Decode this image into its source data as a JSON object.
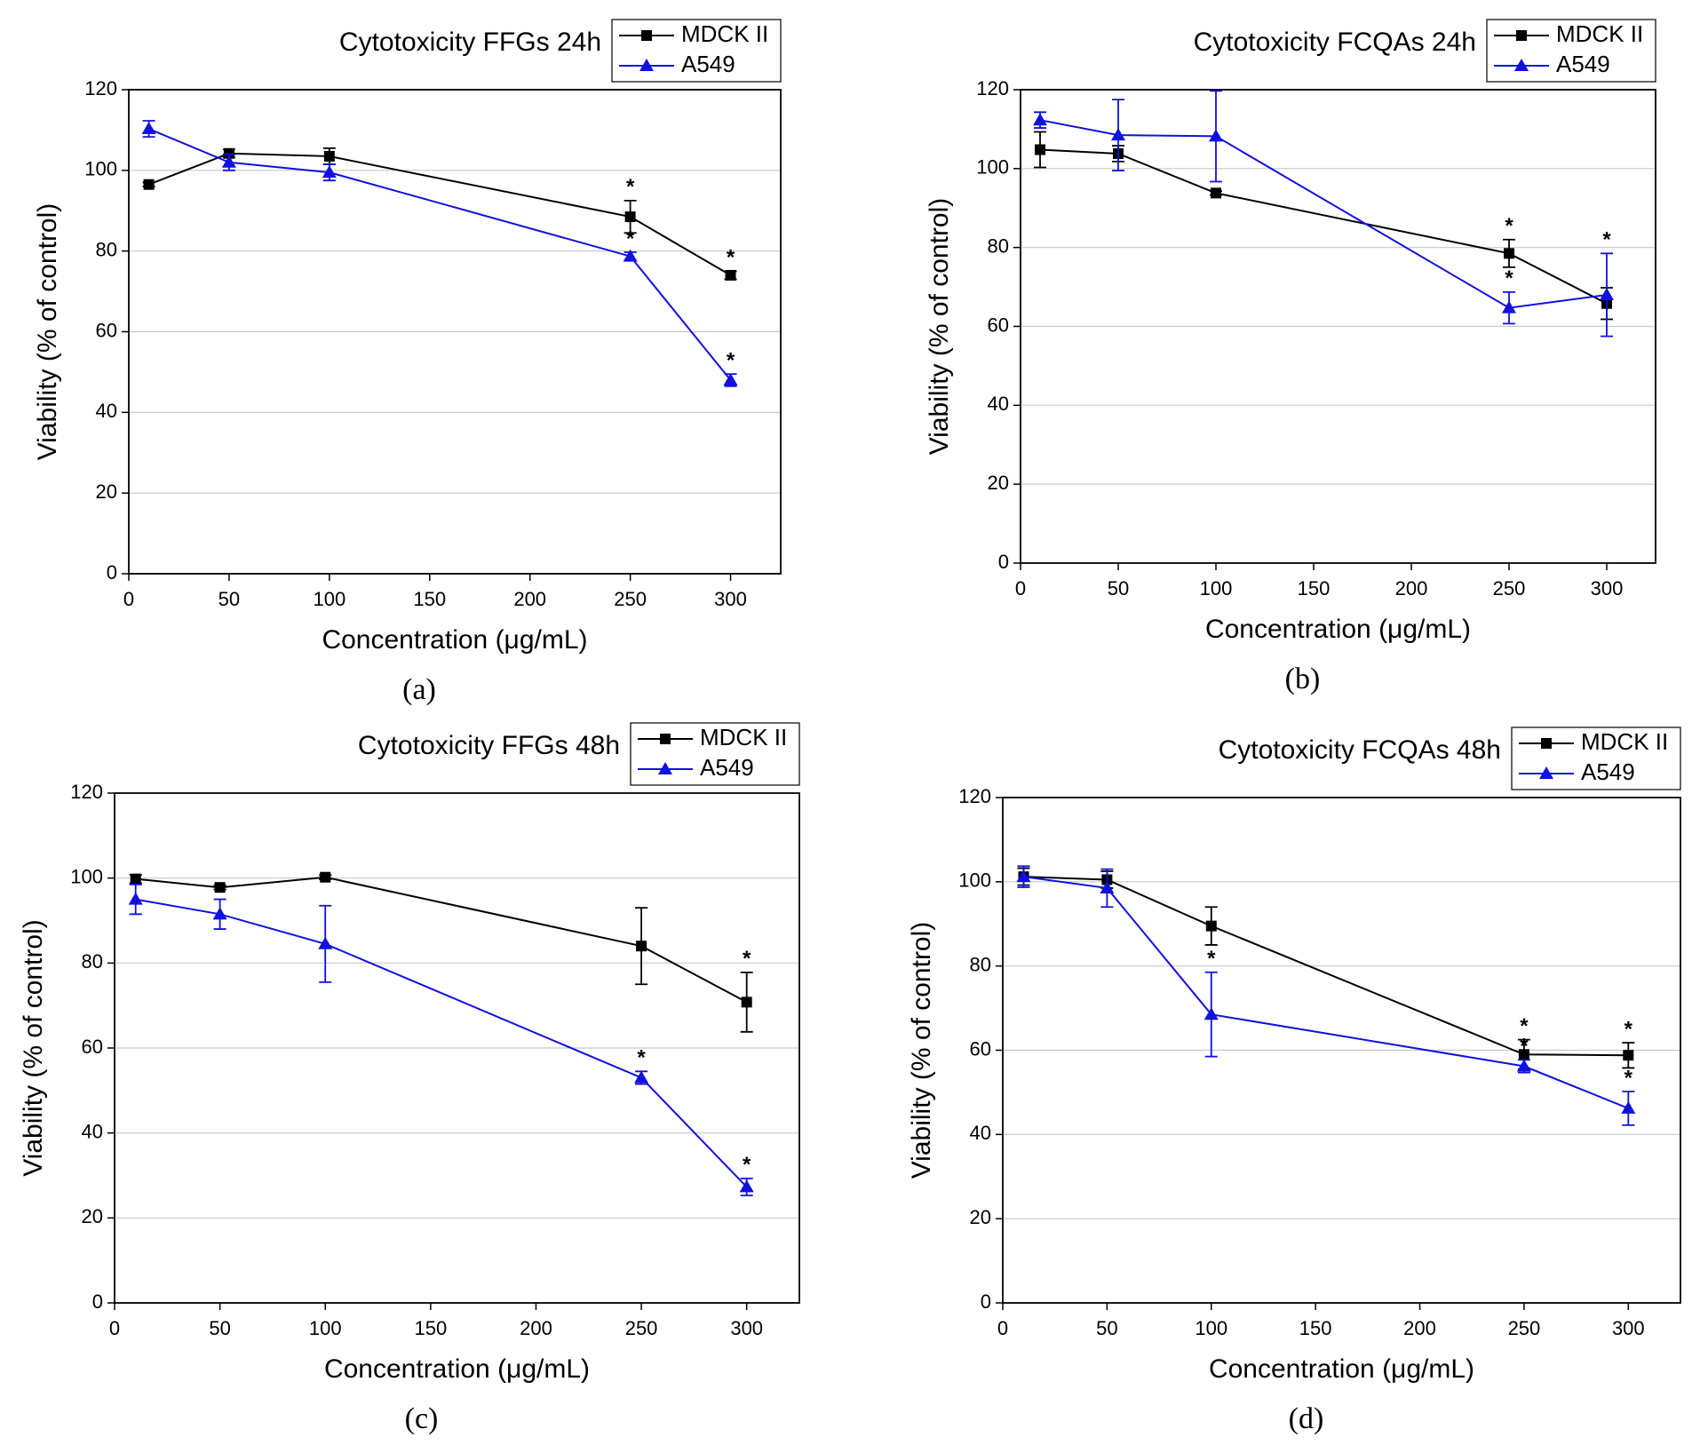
{
  "chart_data": [
    {
      "type": "line",
      "title": "Cytotoxicity FFGs 24h",
      "panel_label": "(a)",
      "x_label": "Concentration (μg/mL)",
      "y_label": "Viability (% of control)",
      "x": [
        10,
        50,
        100,
        250,
        300
      ],
      "xlim": [
        0,
        325
      ],
      "ylim": [
        0,
        120
      ],
      "xticks": [
        0,
        50,
        100,
        150,
        200,
        250,
        300
      ],
      "yticks": [
        0,
        20,
        40,
        60,
        80,
        100,
        120
      ],
      "grid": true,
      "series": [
        {
          "name": "MDCK II",
          "color": "#000000",
          "marker": "square",
          "values": [
            96.5,
            104.2,
            103.5,
            88.5,
            74
          ],
          "errors": [
            0.5,
            1,
            2,
            4,
            1
          ],
          "annotations": [
            null,
            null,
            null,
            "*",
            "*"
          ]
        },
        {
          "name": "A549",
          "color": "#1010e0",
          "marker": "triangle",
          "values": [
            110.3,
            102,
            99.5,
            78.7,
            48
          ],
          "errors": [
            2,
            2,
            2,
            1,
            1.5
          ],
          "annotations": [
            null,
            null,
            null,
            "*",
            "*"
          ]
        }
      ]
    },
    {
      "type": "line",
      "title": "Cytotoxicity FCQAs 24h",
      "panel_label": "(b)",
      "x_label": "Concentration (μg/mL)",
      "y_label": "Viability (% of control)",
      "x": [
        10,
        50,
        100,
        250,
        300
      ],
      "xlim": [
        0,
        325
      ],
      "ylim": [
        0,
        120
      ],
      "xticks": [
        0,
        50,
        100,
        150,
        200,
        250,
        300
      ],
      "yticks": [
        0,
        20,
        40,
        60,
        80,
        100,
        120
      ],
      "grid": true,
      "series": [
        {
          "name": "MDCK II",
          "color": "#000000",
          "marker": "square",
          "values": [
            104.8,
            103.8,
            93.8,
            78.5,
            65.8
          ],
          "errors": [
            4.5,
            2,
            0.5,
            3.5,
            4
          ],
          "annotations": [
            null,
            null,
            null,
            "*",
            null
          ]
        },
        {
          "name": "A549",
          "color": "#1010e0",
          "marker": "triangle",
          "values": [
            112.3,
            108.5,
            108.2,
            64.7,
            68
          ],
          "errors": [
            2,
            9,
            11.5,
            4,
            10.5
          ],
          "annotations": [
            null,
            null,
            null,
            "*",
            "*"
          ]
        }
      ]
    },
    {
      "type": "line",
      "title": "Cytotoxicity FFGs 48h",
      "panel_label": "(c)",
      "x_label": "Concentration (μg/mL)",
      "y_label": "Viability (% of control)",
      "x": [
        10,
        50,
        100,
        250,
        300
      ],
      "xlim": [
        0,
        325
      ],
      "ylim": [
        0,
        120
      ],
      "xticks": [
        0,
        50,
        100,
        150,
        200,
        250,
        300
      ],
      "yticks": [
        0,
        20,
        40,
        60,
        80,
        100,
        120
      ],
      "grid": true,
      "series": [
        {
          "name": "MDCK II",
          "color": "#000000",
          "marker": "square",
          "values": [
            99.8,
            97.8,
            100.2,
            84,
            70.8
          ],
          "errors": [
            1,
            0.5,
            0.5,
            9,
            7
          ],
          "annotations": [
            null,
            null,
            null,
            null,
            "*"
          ]
        },
        {
          "name": "A549",
          "color": "#1010e0",
          "marker": "triangle",
          "values": [
            95,
            91.5,
            84.5,
            53,
            27.3
          ],
          "errors": [
            3.5,
            3.5,
            9,
            1.5,
            2
          ],
          "annotations": [
            null,
            null,
            null,
            "*",
            "*"
          ]
        }
      ]
    },
    {
      "type": "line",
      "title": "Cytotoxicity FCQAs 48h",
      "panel_label": "(d)",
      "x_label": "Concentration (μg/mL)",
      "y_label": "Viability (% of control)",
      "x": [
        10,
        50,
        100,
        250,
        300
      ],
      "xlim": [
        0,
        325
      ],
      "ylim": [
        0,
        120
      ],
      "xticks": [
        0,
        50,
        100,
        150,
        200,
        250,
        300
      ],
      "yticks": [
        0,
        20,
        40,
        60,
        80,
        100,
        120
      ],
      "grid": true,
      "series": [
        {
          "name": "MDCK II",
          "color": "#000000",
          "marker": "square",
          "values": [
            101.2,
            100.5,
            89.5,
            59,
            58.8
          ],
          "errors": [
            2,
            2,
            4.5,
            3.5,
            3
          ],
          "annotations": [
            null,
            null,
            null,
            "*",
            "*"
          ]
        },
        {
          "name": "A549",
          "color": "#1010e0",
          "marker": "triangle",
          "values": [
            101.2,
            98.5,
            68.5,
            56.2,
            46.2
          ],
          "errors": [
            2.5,
            4.5,
            10,
            1.5,
            4
          ],
          "annotations": [
            null,
            null,
            "*",
            "*",
            "*"
          ]
        }
      ]
    }
  ]
}
